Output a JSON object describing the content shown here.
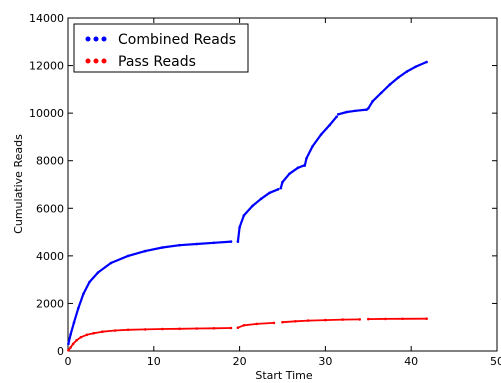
{
  "chart_data": {
    "type": "scatter",
    "xlabel": "Start Time",
    "ylabel": "Cumulative Reads",
    "xlim": [
      0,
      50
    ],
    "ylim": [
      0,
      14000
    ],
    "x_ticks": [
      "0",
      "10",
      "20",
      "30",
      "40",
      "50"
    ],
    "y_ticks": [
      "0",
      "2000",
      "4000",
      "6000",
      "8000",
      "10000",
      "12000",
      "14000"
    ],
    "grid": false,
    "legend_position": "top-left",
    "series": [
      {
        "name": "Combined Reads",
        "color": "#0000ff",
        "segments": [
          [
            [
              0.05,
              300
            ],
            [
              0.3,
              700
            ],
            [
              0.7,
              1200
            ],
            [
              1.2,
              1800
            ],
            [
              1.8,
              2400
            ],
            [
              2.5,
              2900
            ],
            [
              3.5,
              3300
            ],
            [
              5,
              3700
            ],
            [
              7,
              4000
            ],
            [
              9,
              4200
            ],
            [
              11,
              4350
            ],
            [
              13,
              4450
            ],
            [
              15,
              4500
            ],
            [
              17,
              4550
            ],
            [
              19,
              4600
            ]
          ],
          [
            [
              19.8,
              4600
            ],
            [
              20.0,
              5200
            ],
            [
              20.5,
              5700
            ],
            [
              21.5,
              6100
            ],
            [
              22.5,
              6400
            ],
            [
              23.5,
              6650
            ],
            [
              24.5,
              6800
            ]
          ],
          [
            [
              24.8,
              6850
            ],
            [
              25.0,
              7100
            ],
            [
              25.8,
              7450
            ],
            [
              26.8,
              7700
            ],
            [
              27.5,
              7800
            ]
          ],
          [
            [
              27.6,
              7800
            ],
            [
              27.8,
              8100
            ],
            [
              28.5,
              8600
            ],
            [
              29.5,
              9100
            ],
            [
              30.5,
              9500
            ],
            [
              31.3,
              9850
            ]
          ],
          [
            [
              31.5,
              9950
            ],
            [
              32.5,
              10050
            ],
            [
              33.5,
              10100
            ],
            [
              34.8,
              10150
            ]
          ],
          [
            [
              35.0,
              10200
            ],
            [
              35.5,
              10500
            ],
            [
              36.5,
              10850
            ],
            [
              37.5,
              11200
            ],
            [
              38.5,
              11500
            ],
            [
              39.5,
              11750
            ],
            [
              40.5,
              11950
            ],
            [
              41.8,
              12150
            ]
          ]
        ]
      },
      {
        "name": "Pass Reads",
        "color": "#ff0000",
        "segments": [
          [
            [
              0.05,
              30
            ],
            [
              0.3,
              150
            ],
            [
              0.6,
              300
            ],
            [
              1.0,
              450
            ],
            [
              1.5,
              580
            ],
            [
              2.2,
              680
            ],
            [
              3,
              750
            ],
            [
              4,
              810
            ],
            [
              5.5,
              860
            ],
            [
              7,
              890
            ],
            [
              9,
              910
            ],
            [
              11,
              925
            ],
            [
              13,
              935
            ],
            [
              15,
              945
            ],
            [
              17,
              955
            ],
            [
              19,
              965
            ]
          ],
          [
            [
              19.8,
              980
            ],
            [
              20.5,
              1080
            ],
            [
              22,
              1140
            ],
            [
              24,
              1180
            ]
          ],
          [
            [
              25,
              1210
            ],
            [
              26.5,
              1250
            ],
            [
              28,
              1280
            ],
            [
              30,
              1300
            ],
            [
              32,
              1320
            ],
            [
              34,
              1330
            ]
          ],
          [
            [
              35,
              1340
            ],
            [
              37,
              1350
            ],
            [
              39,
              1355
            ],
            [
              41.8,
              1360
            ]
          ]
        ]
      }
    ]
  }
}
